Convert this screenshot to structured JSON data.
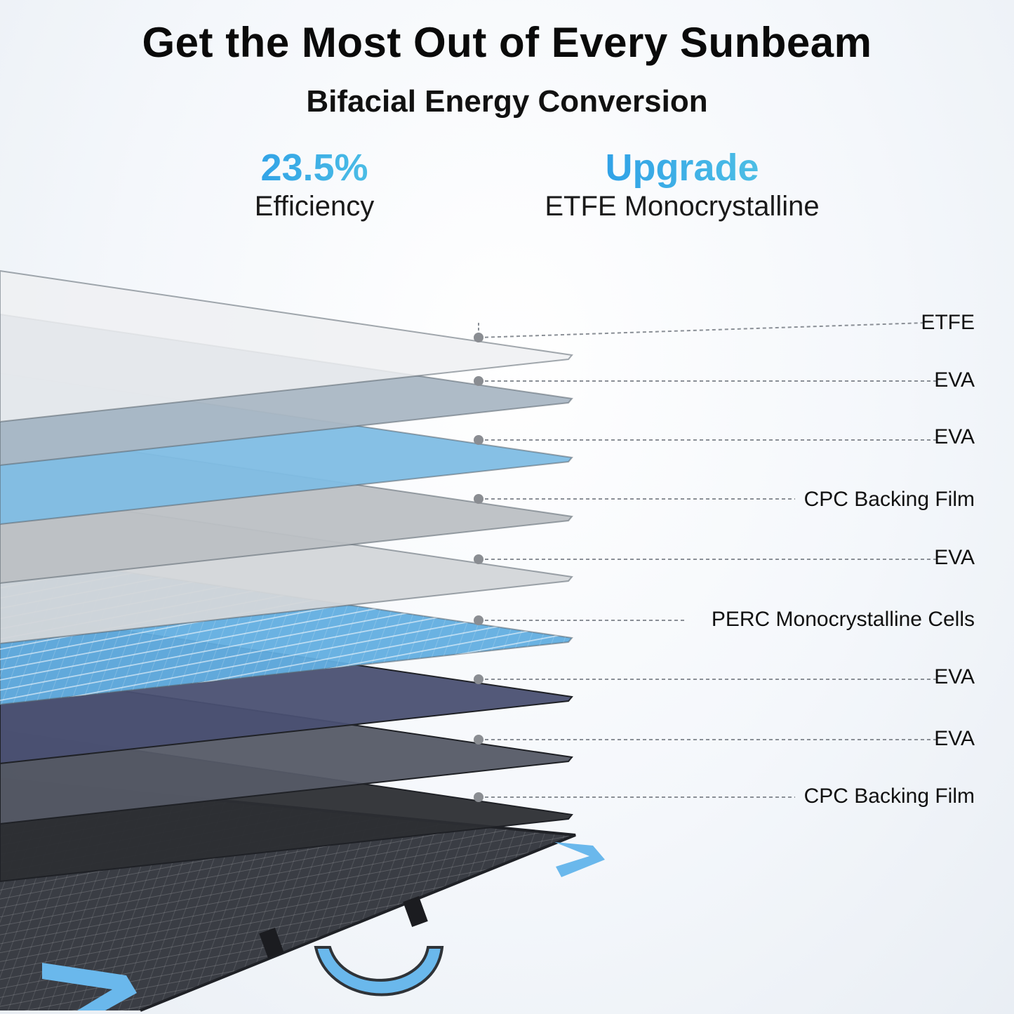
{
  "header": {
    "title": "Get the Most Out of Every Sunbeam",
    "subtitle": "Bifacial Energy Conversion"
  },
  "stats": [
    {
      "value": "23.5%",
      "label": "Efficiency"
    },
    {
      "value": "Upgrade",
      "label": "ETFE Monocrystalline"
    }
  ],
  "layers": [
    {
      "label": "ETFE",
      "color": "#eef0f2"
    },
    {
      "label": "EVA",
      "color": "#aab7c4"
    },
    {
      "label": "EVA",
      "color": "#7fbde4"
    },
    {
      "label": "CPC Backing Film",
      "color": "#bcc0c4"
    },
    {
      "label": "EVA",
      "color": "#d3d6d9"
    },
    {
      "label": "PERC Monocrystalline Cells",
      "color": "#62aee0"
    },
    {
      "label": "EVA",
      "color": "#4a5072"
    },
    {
      "label": "EVA",
      "color": "#555a66"
    },
    {
      "label": "CPC Backing Film",
      "color": "#2c2e33"
    }
  ],
  "accent_colors": {
    "gradient_start": "#1e90e8",
    "gradient_end": "#5fd0e4",
    "corner_guard": "#6ab8ec"
  }
}
